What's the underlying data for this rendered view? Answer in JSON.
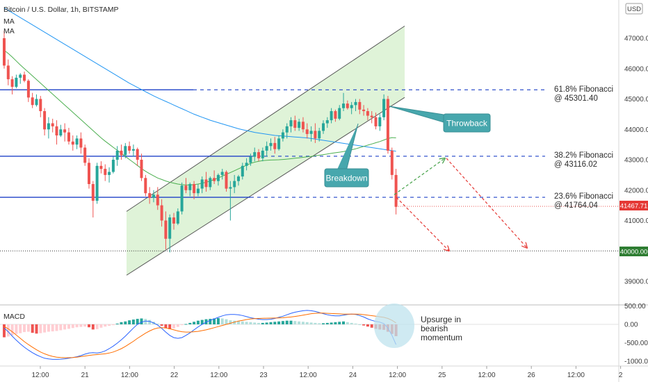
{
  "header": {
    "title": "Bitcoin / U.S. Dollar, 1h, BITSTAMP",
    "ma1": "MA",
    "ma2": "MA",
    "currency": "USD"
  },
  "chart_data": {
    "type": "candlestick",
    "price_axis": {
      "ticks": [
        "47000.00",
        "46000.00",
        "45000.00",
        "44000.00",
        "43000.00",
        "42000.00",
        "41000.00",
        "39000.00"
      ],
      "ylim": [
        38600,
        48200
      ]
    },
    "time_axis": {
      "ticks": [
        "12:00",
        "21",
        "12:00",
        "22",
        "12:00",
        "23",
        "12:00",
        "24",
        "12:00",
        "25",
        "12:00",
        "26",
        "12:00",
        "2"
      ]
    },
    "candles": [
      [
        47000,
        47250,
        46000,
        46100
      ],
      [
        46100,
        46300,
        45450,
        45650
      ],
      [
        45650,
        45750,
        45150,
        45400
      ],
      [
        45400,
        45800,
        45350,
        45700
      ],
      [
        45700,
        45850,
        45500,
        45800
      ],
      [
        45800,
        45900,
        45550,
        45600
      ],
      [
        45600,
        45650,
        44900,
        45050
      ],
      [
        45050,
        45200,
        44700,
        44800
      ],
      [
        44800,
        45150,
        44750,
        45000
      ],
      [
        45000,
        45100,
        44400,
        44600
      ],
      [
        44600,
        44700,
        43800,
        44000
      ],
      [
        44000,
        44400,
        43700,
        44200
      ],
      [
        44200,
        44350,
        43900,
        44100
      ],
      [
        44100,
        44300,
        43500,
        43800
      ],
      [
        43800,
        44150,
        43750,
        44000
      ],
      [
        44000,
        44200,
        43600,
        43900
      ],
      [
        43900,
        44050,
        43500,
        43600
      ],
      [
        43600,
        43800,
        43300,
        43500
      ],
      [
        43500,
        43800,
        43350,
        43700
      ],
      [
        43700,
        43900,
        43200,
        43400
      ],
      [
        43400,
        43500,
        42800,
        42900
      ],
      [
        42900,
        43050,
        42050,
        42200
      ],
      [
        42200,
        42300,
        41100,
        41650
      ],
      [
        41650,
        42900,
        41550,
        42800
      ],
      [
        42800,
        42950,
        42550,
        42700
      ],
      [
        42700,
        42850,
        42300,
        42500
      ],
      [
        42500,
        42750,
        42250,
        42600
      ],
      [
        42600,
        43100,
        42550,
        43000
      ],
      [
        43000,
        43450,
        42800,
        43300
      ],
      [
        43300,
        43500,
        43000,
        43150
      ],
      [
        43150,
        43550,
        43050,
        43450
      ],
      [
        43450,
        43600,
        43200,
        43300
      ],
      [
        43300,
        43500,
        43100,
        43350
      ],
      [
        43350,
        43400,
        42800,
        43000
      ],
      [
        43000,
        43200,
        42300,
        42400
      ],
      [
        42400,
        42500,
        41800,
        41900
      ],
      [
        41900,
        42100,
        41550,
        41750
      ],
      [
        41750,
        42000,
        41600,
        41850
      ],
      [
        41850,
        42100,
        41350,
        41500
      ],
      [
        41500,
        41700,
        40800,
        41000
      ],
      [
        41000,
        41300,
        40050,
        40400
      ],
      [
        40400,
        41200,
        39950,
        41100
      ],
      [
        41100,
        41250,
        40700,
        40900
      ],
      [
        40900,
        41400,
        40850,
        41300
      ],
      [
        41300,
        42250,
        41200,
        42150
      ],
      [
        42150,
        42400,
        41900,
        42000
      ],
      [
        42000,
        42250,
        41800,
        42200
      ],
      [
        42200,
        42300,
        41700,
        41900
      ],
      [
        41900,
        42200,
        41800,
        42050
      ],
      [
        42050,
        42450,
        41900,
        42350
      ],
      [
        42350,
        42600,
        41950,
        42100
      ],
      [
        42100,
        42450,
        42000,
        42400
      ],
      [
        42400,
        42650,
        42200,
        42300
      ],
      [
        42300,
        42550,
        42150,
        42500
      ],
      [
        42500,
        42700,
        42350,
        42600
      ],
      [
        42600,
        42650,
        41950,
        42050
      ],
      [
        42050,
        42300,
        41000,
        42100
      ],
      [
        42100,
        42500,
        41900,
        42300
      ],
      [
        42300,
        42500,
        42150,
        42450
      ],
      [
        42450,
        42900,
        42350,
        42800
      ],
      [
        42800,
        43050,
        42650,
        42900
      ],
      [
        42900,
        43200,
        42800,
        43100
      ],
      [
        43100,
        43400,
        42950,
        43250
      ],
      [
        43250,
        43350,
        42950,
        43050
      ],
      [
        43050,
        43400,
        42950,
        43300
      ],
      [
        43300,
        43600,
        43100,
        43450
      ],
      [
        43450,
        43700,
        43300,
        43550
      ],
      [
        43550,
        43750,
        43200,
        43350
      ],
      [
        43350,
        43800,
        43300,
        43700
      ],
      [
        43700,
        44000,
        43600,
        43900
      ],
      [
        43900,
        44200,
        43700,
        44100
      ],
      [
        44100,
        44400,
        43900,
        44300
      ],
      [
        44300,
        44450,
        43950,
        44050
      ],
      [
        44050,
        44350,
        43950,
        44250
      ],
      [
        44250,
        44400,
        43900,
        44000
      ],
      [
        44000,
        44200,
        43700,
        43850
      ],
      [
        43850,
        44100,
        43600,
        43950
      ],
      [
        43950,
        44200,
        43550,
        43700
      ],
      [
        43700,
        44050,
        43600,
        43950
      ],
      [
        43950,
        44300,
        43850,
        44200
      ],
      [
        44200,
        44400,
        44050,
        44300
      ],
      [
        44300,
        44700,
        44200,
        44600
      ],
      [
        44600,
        44650,
        44250,
        44350
      ],
      [
        44350,
        44800,
        44300,
        44700
      ],
      [
        44700,
        45200,
        44600,
        44850
      ],
      [
        44850,
        44950,
        44650,
        44700
      ],
      [
        44700,
        44900,
        44500,
        44800
      ],
      [
        44800,
        45000,
        44600,
        44900
      ],
      [
        44900,
        45000,
        44500,
        44650
      ],
      [
        44650,
        44800,
        44450,
        44600
      ],
      [
        44600,
        44700,
        44300,
        44450
      ],
      [
        44450,
        44600,
        44200,
        44400
      ],
      [
        44400,
        44550,
        44000,
        44100
      ],
      [
        44100,
        44500,
        43950,
        44400
      ],
      [
        44400,
        45150,
        44300,
        45000
      ],
      [
        45000,
        45100,
        43200,
        43300
      ],
      [
        43300,
        43400,
        42350,
        42500
      ],
      [
        42500,
        42700,
        41200,
        41450
      ]
    ],
    "ma_green": [
      46600,
      46500,
      46380,
      46250,
      46120,
      46000,
      45880,
      45760,
      45640,
      45520,
      45400,
      45280,
      45160,
      45040,
      44920,
      44800,
      44680,
      44560,
      44440,
      44320,
      44200,
      44080,
      43960,
      43840,
      43720,
      43610,
      43510,
      43410,
      43310,
      43210,
      43110,
      43010,
      42910,
      42810,
      42710,
      42620,
      42540,
      42470,
      42400,
      42350,
      42300,
      42260,
      42230,
      42200,
      42180,
      42170,
      42170,
      42180,
      42200,
      42230,
      42260,
      42300,
      42350,
      42400,
      42460,
      42520,
      42580,
      42640,
      42700,
      42760,
      42820,
      42880,
      42920,
      42950,
      42970,
      42985,
      42990,
      42995,
      43000,
      43010,
      43020,
      43035,
      43050,
      43065,
      43080,
      43095,
      43110,
      43130,
      43150,
      43170,
      43190,
      43210,
      43230,
      43250,
      43270,
      43300,
      43330,
      43360,
      43400,
      43440,
      43480,
      43520,
      43560,
      43600,
      43650,
      43700,
      43730,
      43720
    ],
    "ma_blue": [
      48000,
      47920,
      47840,
      47760,
      47680,
      47600,
      47520,
      47440,
      47360,
      47280,
      47200,
      47120,
      47040,
      46960,
      46880,
      46800,
      46720,
      46640,
      46560,
      46480,
      46400,
      46320,
      46240,
      46160,
      46080,
      46000,
      45920,
      45840,
      45760,
      45680,
      45600,
      45520,
      45450,
      45380,
      45310,
      45240,
      45170,
      45100,
      45040,
      44980,
      44920,
      44860,
      44800,
      44740,
      44680,
      44620,
      44560,
      44500,
      44450,
      44400,
      44350,
      44300,
      44260,
      44220,
      44180,
      44140,
      44100,
      44060,
      44020,
      43990,
      43960,
      43930,
      43900,
      43880,
      43860,
      43840,
      43820,
      43800,
      43790,
      43780,
      43770,
      43760,
      43750,
      43740,
      43730,
      43720,
      43700,
      43680,
      43660,
      43640,
      43620,
      43600,
      43580,
      43560,
      43540,
      43520,
      43500,
      43480,
      43460,
      43440,
      43420,
      43400,
      43380,
      43360,
      43340,
      43320,
      43300,
      43280
    ],
    "levels": [
      {
        "name": "61.8% Fibonacci",
        "price_label": "@ 45301.40",
        "value": 45301.4
      },
      {
        "name": "38.2% Fibonacci",
        "price_label": "@ 43116.02",
        "value": 43116.02
      },
      {
        "name": "23.6% Fibonacci",
        "price_label": "@ 41764.04",
        "value": 41764.04
      }
    ],
    "support_level": 40000.0,
    "current_price": 41467.71,
    "current_price_label": "41467.71",
    "support_label": "40000.00",
    "channel": {
      "lower_start": 39200,
      "lower_end": 45050,
      "upper_start": 41300,
      "upper_end": 47400
    },
    "projections": {
      "green_from": 41850,
      "green_to": 43050,
      "red1_to": 40000,
      "red2_to": 40100
    },
    "annotations": {
      "breakdown": "Breakdown",
      "throwback": "Throwback",
      "macd_note": [
        "Upsurge in",
        "bearish",
        "momentum"
      ]
    },
    "macd": {
      "label": "MACD",
      "ticks": [
        "500.00",
        "0.00",
        "-500.00",
        "-1000.00"
      ],
      "ylim": [
        -1100,
        560
      ],
      "hist": [
        -350,
        -330,
        -300,
        -260,
        -240,
        -210,
        -200,
        -230,
        -250,
        -240,
        -220,
        -200,
        -190,
        -180,
        -160,
        -140,
        -120,
        -100,
        -80,
        -70,
        -60,
        -80,
        -140,
        -130,
        -90,
        -60,
        -40,
        -20,
        20,
        60,
        80,
        110,
        130,
        150,
        160,
        150,
        120,
        70,
        20,
        -40,
        -100,
        -130,
        -110,
        -70,
        -20,
        10,
        40,
        70,
        100,
        120,
        140,
        150,
        160,
        170,
        160,
        140,
        110,
        100,
        90,
        80,
        70,
        60,
        50,
        40,
        40,
        50,
        60,
        70,
        80,
        90,
        100,
        100,
        90,
        80,
        70,
        60,
        50,
        40,
        30,
        30,
        40,
        50,
        60,
        70,
        80,
        60,
        40,
        20,
        0,
        -30,
        -60,
        -90,
        -120,
        -140,
        -150,
        -200,
        -260,
        -320
      ],
      "macd_line": [
        -100,
        -200,
        -320,
        -430,
        -530,
        -620,
        -700,
        -770,
        -830,
        -880,
        -920,
        -940,
        -950,
        -950,
        -945,
        -935,
        -920,
        -900,
        -880,
        -850,
        -810,
        -780,
        -770,
        -780,
        -760,
        -720,
        -660,
        -590,
        -510,
        -420,
        -320,
        -210,
        -100,
        0,
        60,
        90,
        80,
        40,
        -20,
        -110,
        -210,
        -300,
        -360,
        -380,
        -360,
        -300,
        -230,
        -150,
        -70,
        0,
        60,
        110,
        150,
        190,
        230,
        260,
        270,
        270,
        260,
        240,
        210,
        180,
        160,
        140,
        130,
        130,
        140,
        160,
        190,
        220,
        260,
        300,
        330,
        350,
        370,
        380,
        370,
        350,
        320,
        290,
        260,
        240,
        230,
        230,
        250,
        270,
        280,
        270,
        240,
        200,
        150,
        110,
        80,
        60,
        20,
        -100,
        -300,
        -550
      ],
      "signal_line": [
        -60,
        -120,
        -200,
        -290,
        -380,
        -470,
        -550,
        -620,
        -690,
        -750,
        -800,
        -840,
        -870,
        -890,
        -900,
        -905,
        -905,
        -900,
        -890,
        -875,
        -860,
        -845,
        -830,
        -820,
        -810,
        -800,
        -780,
        -750,
        -710,
        -660,
        -600,
        -530,
        -460,
        -380,
        -310,
        -240,
        -180,
        -130,
        -100,
        -90,
        -100,
        -120,
        -150,
        -180,
        -200,
        -210,
        -210,
        -200,
        -190,
        -170,
        -150,
        -120,
        -90,
        -60,
        -30,
        0,
        30,
        60,
        90,
        110,
        130,
        145,
        155,
        160,
        165,
        168,
        170,
        172,
        175,
        180,
        190,
        200,
        215,
        230,
        250,
        270,
        290,
        300,
        305,
        305,
        300,
        295,
        290,
        285,
        280,
        280,
        280,
        280,
        275,
        265,
        250,
        235,
        220,
        205,
        190,
        160,
        110,
        40
      ]
    }
  }
}
